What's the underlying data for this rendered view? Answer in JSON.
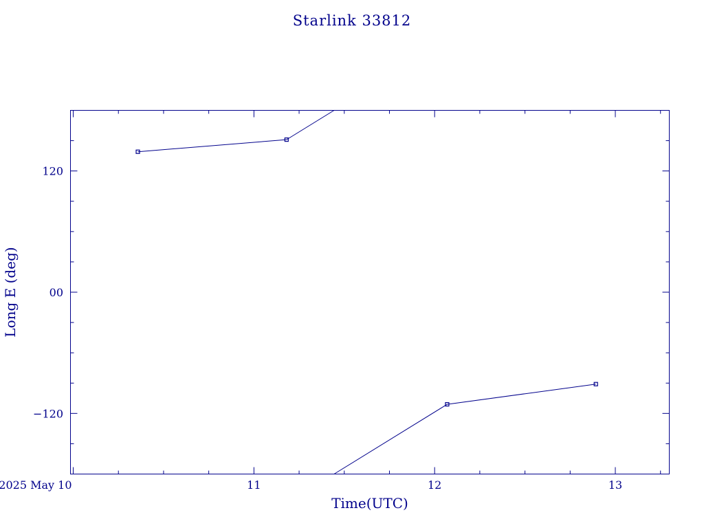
{
  "chart_data": {
    "type": "line",
    "title": "Starlink 33812",
    "xlabel": "Time(UTC)",
    "ylabel": "Long E (deg)",
    "x_axis": {
      "type": "date",
      "range": [
        "2025-05-09T23:38",
        "2025-05-13T07:10"
      ],
      "ticks": [
        {
          "value": "2025-05-10T00:00",
          "label": "2025 May 10"
        },
        {
          "value": "2025-05-11T00:00",
          "label": "11"
        },
        {
          "value": "2025-05-12T00:00",
          "label": "12"
        },
        {
          "value": "2025-05-13T00:00",
          "label": "13"
        }
      ]
    },
    "y_axis": {
      "range": [
        -180,
        180
      ],
      "ticks": [
        {
          "value": 120,
          "label": "120"
        },
        {
          "value": 0,
          "label": "00"
        },
        {
          "value": -120,
          "label": "−120"
        }
      ]
    },
    "grid": false,
    "legend": "none",
    "series": [
      {
        "points": [
          {
            "x": "2025-05-10T08:35",
            "y": 139
          },
          {
            "x": "2025-05-11T04:20",
            "y": 151
          },
          {
            "x": "2025-05-12T01:40",
            "y": -111
          },
          {
            "x": "2025-05-12T21:25",
            "y": -91
          }
        ]
      }
    ],
    "colors": {
      "ink": "#00008b",
      "background": "#ffffff"
    }
  }
}
